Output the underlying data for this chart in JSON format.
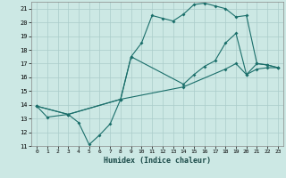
{
  "xlabel": "Humidex (Indice chaleur)",
  "xlim": [
    -0.5,
    23.5
  ],
  "ylim": [
    11,
    21.5
  ],
  "xticks": [
    0,
    1,
    2,
    3,
    4,
    5,
    6,
    7,
    8,
    9,
    10,
    11,
    12,
    13,
    14,
    15,
    16,
    17,
    18,
    19,
    20,
    21,
    22,
    23
  ],
  "yticks": [
    11,
    12,
    13,
    14,
    15,
    16,
    17,
    18,
    19,
    20,
    21
  ],
  "bg_color": "#cce8e4",
  "grid_color": "#aaccca",
  "line_color": "#1a6e6a",
  "line1_x": [
    0,
    1,
    3,
    4,
    5,
    6,
    7,
    8,
    9,
    10,
    11,
    12,
    13,
    14,
    15,
    16,
    17,
    18,
    19,
    20,
    21,
    22,
    23
  ],
  "line1_y": [
    13.9,
    13.1,
    13.3,
    12.7,
    11.1,
    11.8,
    12.6,
    14.4,
    17.5,
    18.5,
    20.5,
    20.3,
    20.1,
    20.6,
    21.3,
    21.4,
    21.2,
    21.0,
    20.4,
    20.5,
    17.0,
    16.9,
    16.7
  ],
  "line2_x": [
    0,
    3,
    8,
    9,
    14,
    15,
    16,
    17,
    18,
    19,
    20,
    21,
    22,
    23
  ],
  "line2_y": [
    13.9,
    13.3,
    14.4,
    17.5,
    15.5,
    16.2,
    16.8,
    17.2,
    18.5,
    19.2,
    16.2,
    17.0,
    16.9,
    16.7
  ],
  "line3_x": [
    0,
    3,
    8,
    14,
    18,
    19,
    20,
    21,
    22,
    23
  ],
  "line3_y": [
    13.9,
    13.3,
    14.4,
    15.3,
    16.6,
    17.0,
    16.2,
    16.6,
    16.7,
    16.7
  ]
}
